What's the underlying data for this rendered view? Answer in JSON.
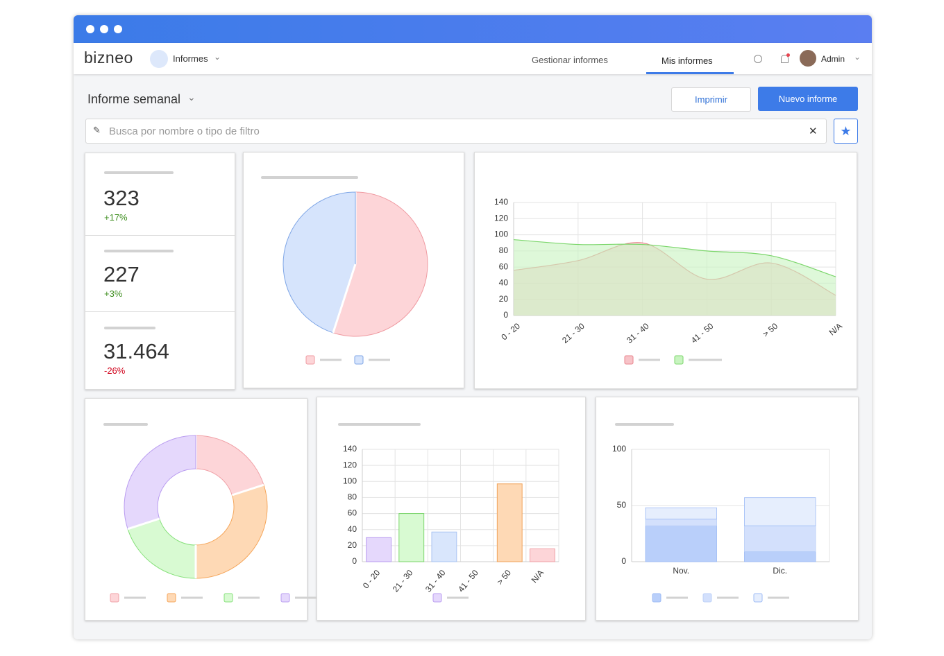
{
  "header": {
    "logo": "bizneo",
    "module": "Informes",
    "tabs": [
      "Gestionar informes",
      "Mis informes"
    ],
    "user": "Admin"
  },
  "toolbar": {
    "report": "Informe semanal",
    "print": "Imprimir",
    "new": "Nuevo informe",
    "search_placeholder": "Busca por nombre o tipo de filtro"
  },
  "kpis": [
    {
      "value": "323",
      "change": "+17%",
      "color": "#3f8f20"
    },
    {
      "value": "227",
      "change": "+3%",
      "color": "#3f8f20"
    },
    {
      "value": "31.464",
      "change": "-26%",
      "color": "#d0021b"
    }
  ],
  "chart_data": [
    {
      "type": "pie",
      "values": [
        55,
        45
      ],
      "colors": [
        "#fdd5d8",
        "#d6e4fc"
      ],
      "stroke_colors": [
        "#ef9aa1",
        "#7fa6e6"
      ]
    },
    {
      "type": "area",
      "categories": [
        "0 - 20",
        "21 - 30",
        "31 - 40",
        "41 - 50",
        "> 50",
        "N/A"
      ],
      "series": [
        {
          "color": "#f7c3c8",
          "line_color": "#e8868e",
          "values": [
            56,
            68,
            90,
            45,
            65,
            25
          ]
        },
        {
          "color": "#c8f4c0",
          "line_color": "#7bd66b",
          "values": [
            94,
            88,
            88,
            80,
            74,
            48
          ]
        }
      ],
      "ylim": [
        0,
        140
      ],
      "yticks": [
        0,
        20,
        40,
        60,
        80,
        100,
        120,
        140
      ],
      "grid": true
    },
    {
      "type": "donut",
      "values": [
        20,
        30,
        20,
        30
      ],
      "colors": [
        "#fdd5d8",
        "#fed9b5",
        "#d8fad2",
        "#e5d8fc"
      ],
      "stroke_colors": [
        "#f0a0a6",
        "#f5a65b",
        "#86e07a",
        "#b99cf0"
      ]
    },
    {
      "type": "bar",
      "categories": [
        "0 - 20",
        "21 - 30",
        "31 - 40",
        "41 - 50",
        "> 50",
        "N/A"
      ],
      "values": [
        30,
        60,
        37,
        null,
        97,
        16
      ],
      "colors": [
        "#e5d8fc",
        "#d8fad2",
        "#d9e6fc",
        "#d9e6fc",
        "#fed9b5",
        "#fdd5d8"
      ],
      "stroke_colors": [
        "#b99cf0",
        "#7bd66b",
        "#a9c4f2",
        "#a9c4f2",
        "#f0a35b",
        "#f0a0a6"
      ],
      "ylim": [
        0,
        140
      ],
      "yticks": [
        0,
        20,
        40,
        60,
        80,
        100,
        120,
        140
      ],
      "grid": true
    },
    {
      "type": "stacked_bar",
      "categories": [
        "Nov.",
        "Dic."
      ],
      "series": [
        {
          "color": "#b9cffa",
          "line_color": "#9dbbf5",
          "values": [
            32,
            9
          ]
        },
        {
          "color": "#d3e0fc",
          "line_color": "#bcd0f8",
          "values": [
            6,
            23
          ]
        },
        {
          "color": "#e6eefd",
          "line_color": "#9dbbf5",
          "values": [
            10,
            25
          ]
        }
      ],
      "ylim": [
        0,
        100
      ],
      "yticks": [
        0,
        50,
        100
      ],
      "grid": true
    }
  ]
}
